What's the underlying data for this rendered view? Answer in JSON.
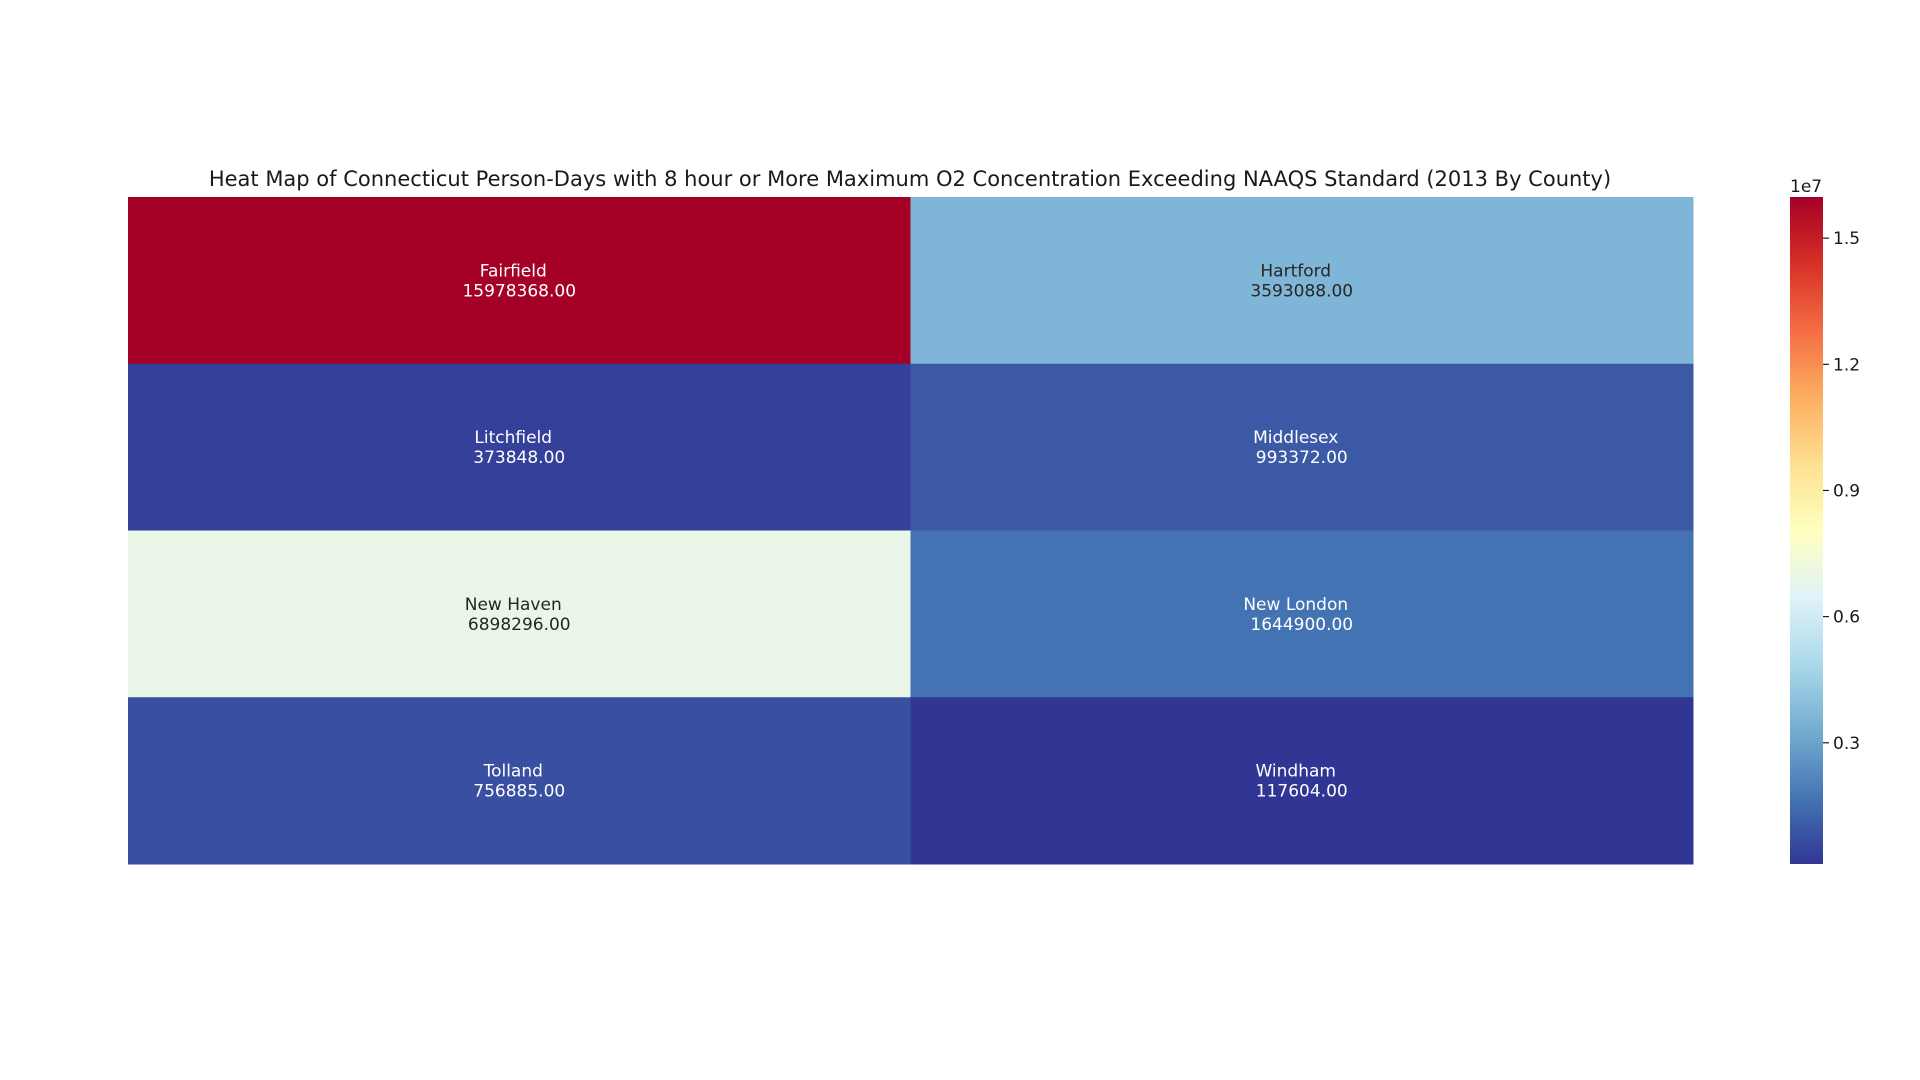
{
  "chart_data": {
    "type": "heatmap",
    "title": "Heat Map of Connecticut Person-Days with 8 hour or More Maximum O2 Concentration Exceeding NAAQS Standard (2013 By County)",
    "rows": 4,
    "cols": 2,
    "cells": [
      {
        "label": "Fairfield",
        "value": 15978368.0,
        "display": "15978368.00"
      },
      {
        "label": "Hartford",
        "value": 3593088.0,
        "display": "3593088.00"
      },
      {
        "label": "Litchfield",
        "value": 373848.0,
        "display": "373848.00"
      },
      {
        "label": "Middlesex",
        "value": 993372.0,
        "display": "993372.00"
      },
      {
        "label": "New Haven",
        "value": 6898296.0,
        "display": "6898296.00"
      },
      {
        "label": "New London",
        "value": 1644900.0,
        "display": "1644900.00"
      },
      {
        "label": "Tolland",
        "value": 756885.0,
        "display": "756885.00"
      },
      {
        "label": "Windham",
        "value": 117604.0,
        "display": "117604.00"
      }
    ],
    "colormap": "RdYlBu_r",
    "colormap_stops": [
      "#313695",
      "#4575b4",
      "#74add1",
      "#abd9e9",
      "#e0f3f8",
      "#ffffbf",
      "#fee090",
      "#fdae61",
      "#f46d43",
      "#d73027",
      "#a50026"
    ],
    "vmin": 117604.0,
    "vmax": 15978368.0,
    "colorbar": {
      "ticks": [
        0.3,
        0.6,
        0.9,
        1.2,
        1.5
      ],
      "multiplier": 10000000,
      "offset_label": "1e7"
    },
    "text_colors": {
      "dark": "#262626",
      "light": "#ffffff"
    }
  }
}
